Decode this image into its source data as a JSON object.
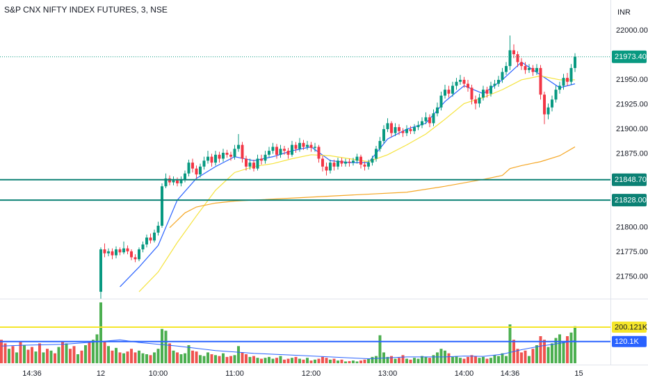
{
  "chart_data": {
    "type": "candlestick",
    "title": "S&P CNX NIFTY INDEX FUTURES, 3, NSE",
    "currency": "INR",
    "up_color": "#089981",
    "down_color": "#f23645",
    "volume_up_color": "#4caf50",
    "volume_down_color": "#ef5350",
    "ylim": [
      21728,
      22031
    ],
    "yticks": [
      {
        "value": 21750,
        "label": "21750.00"
      },
      {
        "value": 21775,
        "label": "21775.00"
      },
      {
        "value": 21800,
        "label": "21800.00"
      },
      {
        "value": 21875,
        "label": "21875.00"
      },
      {
        "value": 21900,
        "label": "21900.00"
      },
      {
        "value": 21925,
        "label": "21925.00"
      },
      {
        "value": 21950,
        "label": "21950.00"
      },
      {
        "value": 22000,
        "label": "22000.00"
      }
    ],
    "volume_ylim": [
      0,
      350000
    ],
    "xticks": [
      {
        "value": -18,
        "label": "14:36"
      },
      {
        "value": 0,
        "label": "12"
      },
      {
        "value": 15,
        "label": "10:00"
      },
      {
        "value": 35,
        "label": "11:00"
      },
      {
        "value": 55,
        "label": "12:00"
      },
      {
        "value": 75,
        "label": "13:00"
      },
      {
        "value": 95,
        "label": "14:00"
      },
      {
        "value": 107,
        "label": "14:36"
      },
      {
        "value": 125,
        "label": "15"
      }
    ],
    "open": [
      21735,
      21778,
      21774,
      21776,
      21772,
      21778,
      21775,
      21779,
      21776,
      21770,
      21768,
      21778,
      21783,
      21790,
      21787,
      21795,
      21802,
      21842,
      21850,
      21846,
      21848,
      21845,
      21849,
      21855,
      21866,
      21860,
      21854,
      21862,
      21868,
      21872,
      21866,
      21874,
      21870,
      21876,
      21874,
      21872,
      21880,
      21884,
      21870,
      21862,
      21866,
      21860,
      21870,
      21868,
      21874,
      21878,
      21882,
      21874,
      21880,
      21878,
      21874,
      21884,
      21880,
      21886,
      21882,
      21884,
      21881,
      21882,
      21870,
      21862,
      21858,
      21866,
      21862,
      21868,
      21865,
      21867,
      21866,
      21868,
      21872,
      21864,
      21862,
      21866,
      21870,
      21880,
      21888,
      21900,
      21906,
      21896,
      21902,
      21898,
      21896,
      21900,
      21898,
      21902,
      21904,
      21908,
      21912,
      21906,
      21916,
      21922,
      21934,
      21940,
      21936,
      21944,
      21948,
      21950,
      21946,
      21942,
      21930,
      21926,
      21932,
      21940,
      21936,
      21944,
      21946,
      21950,
      21958,
      21964,
      21980,
      21976,
      21968,
      21964,
      21960,
      21962,
      21958,
      21962,
      21935,
      21915,
      21922,
      21930,
      21940,
      21944,
      21952,
      21948,
      21962
    ],
    "high": [
      21780,
      21784,
      21779,
      21779,
      21781,
      21780,
      21786,
      21782,
      21778,
      21773,
      21780,
      21786,
      21793,
      21794,
      21798,
      21806,
      21845,
      21855,
      21853,
      21852,
      21851,
      21852,
      21858,
      21869,
      21870,
      21863,
      21865,
      21872,
      21878,
      21875,
      21878,
      21877,
      21880,
      21879,
      21877,
      21884,
      21895,
      21887,
      21873,
      21870,
      21869,
      21874,
      21874,
      21878,
      21882,
      21886,
      21885,
      21884,
      21883,
      21881,
      21888,
      21887,
      21891,
      21889,
      21888,
      21887,
      21886,
      21884,
      21873,
      21866,
      21869,
      21869,
      21871,
      21871,
      21870,
      21870,
      21871,
      21875,
      21874,
      21867,
      21869,
      21873,
      21883,
      21892,
      21904,
      21911,
      21908,
      21906,
      21905,
      21901,
      21904,
      21903,
      21905,
      21908,
      21912,
      21917,
      21915,
      21920,
      21927,
      21938,
      21945,
      21944,
      21948,
      21952,
      21955,
      21953,
      21950,
      21945,
      21934,
      21936,
      21944,
      21943,
      21948,
      21950,
      21954,
      21962,
      21968,
      21995,
      21986,
      21979,
      21972,
      21968,
      21966,
      21965,
      21966,
      21965,
      21938,
      21926,
      21934,
      21944,
      21948,
      21956,
      21957,
      21966,
      21977
    ],
    "low": [
      21728,
      21770,
      21771,
      21768,
      21769,
      21772,
      21773,
      21773,
      21767,
      21765,
      21766,
      21775,
      21780,
      21784,
      21785,
      21792,
      21800,
      21840,
      21843,
      21843,
      21842,
      21842,
      21846,
      21852,
      21856,
      21850,
      21851,
      21859,
      21865,
      21862,
      21863,
      21866,
      21867,
      21871,
      21868,
      21869,
      21877,
      21866,
      21858,
      21859,
      21857,
      21858,
      21864,
      21865,
      21871,
      21875,
      21870,
      21871,
      21874,
      21870,
      21872,
      21876,
      21877,
      21879,
      21879,
      21877,
      21877,
      21866,
      21857,
      21853,
      21855,
      21858,
      21859,
      21862,
      21862,
      21862,
      21863,
      21865,
      21860,
      21858,
      21859,
      21863,
      21867,
      21877,
      21885,
      21897,
      21892,
      21893,
      21894,
      21892,
      21893,
      21895,
      21895,
      21899,
      21901,
      21905,
      21902,
      21903,
      21913,
      21919,
      21931,
      21932,
      21933,
      21940,
      21945,
      21942,
      21938,
      21925,
      21920,
      21922,
      21929,
      21932,
      21933,
      21941,
      21943,
      21947,
      21955,
      21960,
      21972,
      21963,
      21960,
      21956,
      21957,
      21954,
      21955,
      21930,
      21905,
      21910,
      21918,
      21927,
      21936,
      21940,
      21944,
      21945,
      21958
    ],
    "close": [
      21778,
      21774,
      21776,
      21772,
      21778,
      21775,
      21779,
      21776,
      21770,
      21768,
      21778,
      21783,
      21790,
      21787,
      21795,
      21802,
      21842,
      21850,
      21846,
      21848,
      21845,
      21849,
      21855,
      21866,
      21860,
      21854,
      21862,
      21868,
      21872,
      21866,
      21874,
      21870,
      21876,
      21874,
      21872,
      21880,
      21884,
      21870,
      21862,
      21866,
      21860,
      21870,
      21868,
      21874,
      21878,
      21882,
      21874,
      21880,
      21878,
      21874,
      21884,
      21880,
      21886,
      21882,
      21884,
      21881,
      21882,
      21870,
      21862,
      21858,
      21866,
      21862,
      21868,
      21865,
      21867,
      21866,
      21868,
      21872,
      21864,
      21862,
      21866,
      21870,
      21880,
      21888,
      21900,
      21906,
      21896,
      21902,
      21898,
      21896,
      21900,
      21898,
      21902,
      21904,
      21908,
      21912,
      21906,
      21916,
      21922,
      21934,
      21940,
      21936,
      21944,
      21948,
      21950,
      21946,
      21942,
      21930,
      21926,
      21932,
      21940,
      21936,
      21944,
      21946,
      21950,
      21958,
      21964,
      21980,
      21976,
      21968,
      21964,
      21960,
      21962,
      21958,
      21962,
      21935,
      21915,
      21922,
      21930,
      21940,
      21944,
      21952,
      21948,
      21962,
      21973.4
    ],
    "volume": [
      337000,
      120000,
      95000,
      70000,
      85000,
      60000,
      55000,
      65000,
      80000,
      60000,
      70000,
      55000,
      50000,
      45000,
      60000,
      80000,
      190000,
      180000,
      110000,
      70000,
      60000,
      50000,
      55000,
      100000,
      70000,
      65000,
      45000,
      40000,
      60000,
      50000,
      45000,
      40000,
      55000,
      35000,
      40000,
      45000,
      95000,
      60000,
      50000,
      35000,
      40000,
      30000,
      25000,
      30000,
      35000,
      25000,
      30000,
      40000,
      20000,
      25000,
      30000,
      35000,
      25000,
      20000,
      30000,
      15000,
      20000,
      25000,
      35000,
      30000,
      20000,
      25000,
      15000,
      20000,
      10000,
      12000,
      15000,
      10000,
      15000,
      20000,
      25000,
      35000,
      40000,
      155000,
      60000,
      35000,
      40000,
      25000,
      30000,
      45000,
      25000,
      20000,
      30000,
      25000,
      40000,
      35000,
      30000,
      45000,
      60000,
      80000,
      70000,
      55000,
      35000,
      40000,
      30000,
      25000,
      35000,
      45000,
      40000,
      30000,
      35000,
      25000,
      30000,
      45000,
      40000,
      55000,
      40000,
      215000,
      130000,
      80000,
      60000,
      70000,
      40000,
      80000,
      100000,
      150000,
      130000,
      90000,
      110000,
      140000,
      160000,
      120000,
      150000,
      170000,
      205000
    ],
    "prev_volume": [
      130000,
      110000,
      80000,
      95000,
      60000,
      120000,
      100000,
      75000,
      90000,
      65000,
      110000,
      60000,
      80000,
      70000,
      55000,
      90000,
      120000,
      110000,
      80000,
      95000,
      50000,
      70000,
      100000,
      115000,
      130000,
      160000
    ],
    "prev_volume_colors": [
      "#ef5350",
      "#ef5350",
      "#4caf50",
      "#ef5350",
      "#4caf50",
      "#ef5350",
      "#4caf50",
      "#ef5350",
      "#ef5350",
      "#4caf50",
      "#ef5350",
      "#4caf50",
      "#ef5350",
      "#4caf50",
      "#ef5350",
      "#4caf50",
      "#ef5350",
      "#4caf50",
      "#ef5350",
      "#ef5350",
      "#4caf50",
      "#ef5350",
      "#4caf50",
      "#ef5350",
      "#4caf50",
      "#4caf50"
    ],
    "lines": [
      {
        "color": "#2962ff",
        "x": [
          5,
          10,
          15,
          20,
          25,
          30,
          35,
          40,
          45,
          50,
          55,
          60,
          65,
          70,
          75,
          80,
          85,
          90,
          95,
          100,
          105,
          110,
          115,
          120,
          124
        ],
        "values": [
          21740,
          21760,
          21782,
          21828,
          21850,
          21862,
          21872,
          21868,
          21872,
          21878,
          21882,
          21868,
          21866,
          21866,
          21890,
          21900,
          21906,
          21928,
          21944,
          21936,
          21950,
          21968,
          21955,
          21942,
          21946
        ]
      },
      {
        "color": "#f5e33c",
        "x": [
          10,
          15,
          20,
          25,
          30,
          35,
          40,
          45,
          50,
          55,
          60,
          65,
          70,
          75,
          80,
          85,
          90,
          95,
          100,
          105,
          110,
          115,
          120,
          124
        ],
        "values": [
          21735,
          21755,
          21785,
          21812,
          21838,
          21856,
          21862,
          21865,
          21870,
          21874,
          21873,
          21870,
          21867,
          21874,
          21884,
          21895,
          21910,
          21926,
          21932,
          21940,
          21950,
          21954,
          21950,
          21950
        ]
      },
      {
        "color": "#f5a623",
        "x": [
          18,
          22,
          25,
          30,
          35,
          40,
          50,
          60,
          70,
          80,
          90,
          100,
          105,
          107,
          110,
          115,
          120,
          124
        ],
        "values": [
          21800,
          21815,
          21821,
          21825,
          21827,
          21828,
          21830,
          21832,
          21834,
          21836,
          21842,
          21849,
          21853,
          21860,
          21863,
          21867,
          21873,
          21882
        ]
      }
    ],
    "volume_ma": {
      "color": "#2962ff",
      "x": [
        -26,
        -20,
        -10,
        0,
        5,
        10,
        20,
        30,
        40,
        50,
        60,
        65,
        70,
        75,
        80,
        90,
        95,
        100,
        105,
        110,
        115,
        120,
        124
      ],
      "values": [
        95000,
        100000,
        105000,
        120000,
        130000,
        115000,
        95000,
        70000,
        55000,
        45000,
        35000,
        30000,
        25000,
        30000,
        35000,
        35000,
        40000,
        38000,
        50000,
        75000,
        95000,
        110000,
        125000
      ]
    },
    "levels": [
      {
        "value": 21973.4,
        "label": "21973.40",
        "color": "#089981",
        "style": "dotted"
      },
      {
        "value": 21848.7,
        "label": "21848.70",
        "color": "#0b8174",
        "style": "solid"
      },
      {
        "value": 21828,
        "label": "21828.00",
        "color": "#0b8174",
        "style": "solid"
      }
    ],
    "volume_levels": [
      {
        "value": 200121,
        "label": "200.121K",
        "color": "#f5e62a",
        "text_color": "#131722"
      },
      {
        "value": 120100,
        "label": "120.1K",
        "color": "#2962ff",
        "text_color": "#ffffff"
      }
    ]
  }
}
